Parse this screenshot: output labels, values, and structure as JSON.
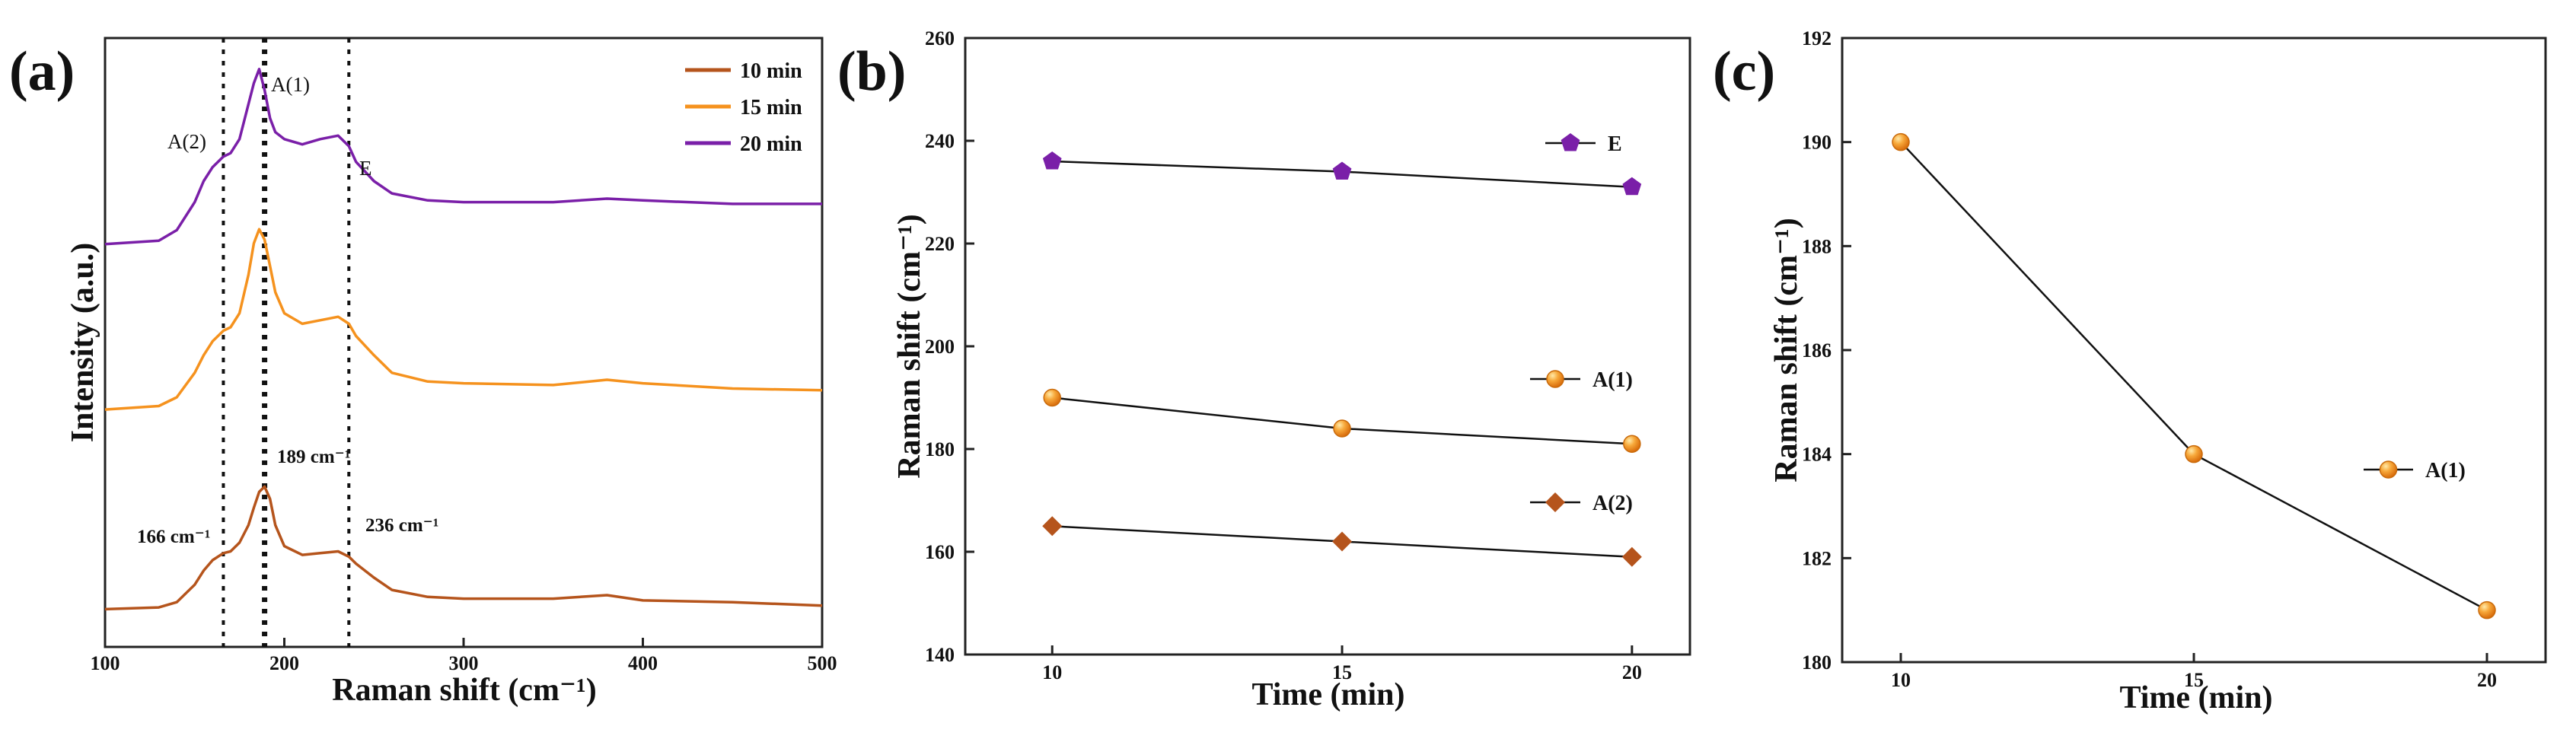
{
  "panels": {
    "a": {
      "label": "(a)"
    },
    "b": {
      "label": "(b)"
    },
    "c": {
      "label": "(c)"
    }
  },
  "chart_data": [
    {
      "type": "line",
      "panel": "(a)",
      "title": "",
      "xlabel": "Raman shift (cm⁻¹)",
      "ylabel": "Intensity (a.u.)",
      "xlim": [
        100,
        500
      ],
      "xticks": [
        "100",
        "200",
        "300",
        "400",
        "500"
      ],
      "yticks": [],
      "grid": false,
      "legend_position": "top-right",
      "series": [
        {
          "name": "10 min",
          "color": "#b5541c",
          "offset": 0,
          "x": [
            100,
            130,
            140,
            150,
            155,
            160,
            166,
            170,
            175,
            180,
            183,
            186,
            189,
            192,
            195,
            200,
            210,
            220,
            230,
            236,
            240,
            250,
            260,
            280,
            300,
            350,
            380,
            400,
            450,
            500
          ],
          "y": [
            0.2,
            0.3,
            0.6,
            1.6,
            2.4,
            3.0,
            3.4,
            3.5,
            4.0,
            5.0,
            6.0,
            6.9,
            7.2,
            6.5,
            5.0,
            3.8,
            3.3,
            3.4,
            3.5,
            3.2,
            2.8,
            2.0,
            1.3,
            0.9,
            0.8,
            0.8,
            1.0,
            0.7,
            0.6,
            0.4
          ]
        },
        {
          "name": "15 min",
          "color": "#f5921e",
          "offset": 0,
          "x": [
            100,
            130,
            140,
            150,
            155,
            160,
            166,
            170,
            175,
            180,
            183,
            186,
            189,
            192,
            195,
            200,
            210,
            220,
            230,
            236,
            240,
            250,
            260,
            280,
            300,
            350,
            380,
            400,
            450,
            500
          ],
          "y": [
            0.3,
            0.5,
            1.0,
            2.4,
            3.4,
            4.2,
            4.8,
            5.0,
            5.8,
            8.0,
            9.8,
            10.6,
            10.0,
            8.5,
            7.0,
            5.8,
            5.2,
            5.4,
            5.6,
            5.2,
            4.5,
            3.4,
            2.4,
            1.9,
            1.8,
            1.7,
            2.0,
            1.8,
            1.5,
            1.4
          ]
        },
        {
          "name": "20 min",
          "color": "#7a1fa8",
          "offset": 0,
          "x": [
            100,
            130,
            140,
            150,
            155,
            160,
            166,
            170,
            175,
            180,
            183,
            186,
            189,
            192,
            195,
            200,
            210,
            220,
            230,
            236,
            240,
            250,
            260,
            280,
            300,
            350,
            380,
            400,
            450,
            500
          ],
          "y": [
            0.4,
            0.6,
            1.2,
            2.8,
            4.0,
            4.8,
            5.4,
            5.6,
            6.4,
            8.4,
            9.6,
            10.4,
            9.2,
            7.6,
            6.8,
            6.4,
            6.1,
            6.4,
            6.6,
            6.0,
            5.1,
            4.0,
            3.3,
            2.9,
            2.8,
            2.8,
            3.0,
            2.9,
            2.7,
            2.7
          ]
        }
      ],
      "vlines": [
        166,
        189,
        236
      ],
      "annotations": {
        "peak_a2": "A(2)",
        "peak_a1": "A(1)",
        "peak_e": "E",
        "pos_166": "166 cm⁻¹",
        "pos_189": "189 cm⁻¹",
        "pos_236": "236 cm⁻¹"
      }
    },
    {
      "type": "line",
      "panel": "(b)",
      "title": "",
      "xlabel": "Time (min)",
      "ylabel": "Raman shift (cm⁻¹)",
      "xlim": [
        8.5,
        21
      ],
      "ylim": [
        140,
        260
      ],
      "xticks": [
        "10",
        "15",
        "20"
      ],
      "yticks": [
        "140",
        "160",
        "180",
        "200",
        "220",
        "240",
        "260"
      ],
      "grid": false,
      "legend_position": "right",
      "x": [
        10,
        15,
        20
      ],
      "series": [
        {
          "name": "E",
          "marker": "pentagon",
          "color": "#7a1fa8",
          "values": [
            236,
            234,
            231
          ]
        },
        {
          "name": "A(1)",
          "marker": "circle",
          "color": "#f5921e",
          "values": [
            190,
            184,
            181
          ]
        },
        {
          "name": "A(2)",
          "marker": "diamond",
          "color": "#b5541c",
          "values": [
            165,
            162,
            159
          ]
        }
      ]
    },
    {
      "type": "line",
      "panel": "(c)",
      "title": "",
      "xlabel": "Time (min)",
      "ylabel": "Raman shift (cm⁻¹)",
      "xlim": [
        9,
        21
      ],
      "ylim": [
        180,
        192
      ],
      "xticks": [
        "10",
        "15",
        "20"
      ],
      "yticks": [
        "180",
        "182",
        "184",
        "186",
        "188",
        "190",
        "192"
      ],
      "grid": false,
      "legend_position": "right",
      "x": [
        10,
        15,
        20
      ],
      "series": [
        {
          "name": "A(1)",
          "marker": "circle",
          "color": "#f5921e",
          "values": [
            190,
            184,
            181
          ]
        }
      ]
    }
  ]
}
